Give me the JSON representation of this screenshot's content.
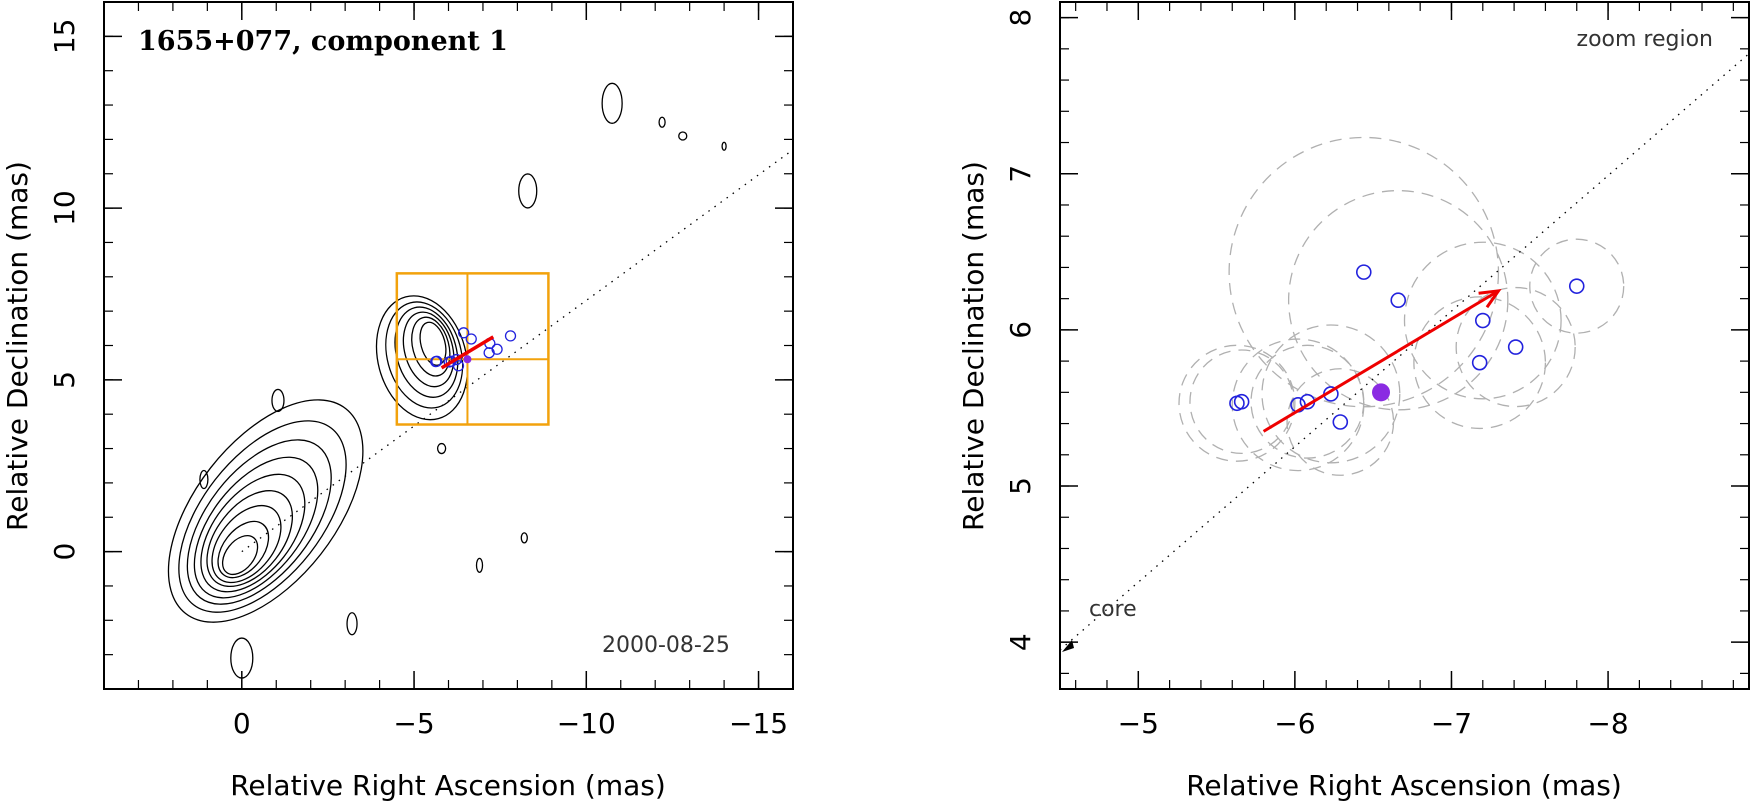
{
  "chart_data": [
    {
      "type": "scatter",
      "title": "1655+077, component 1",
      "xlabel": "Relative Right Ascension (mas)",
      "ylabel": "Relative Declination (mas)",
      "date": "2000-08-25",
      "xlim": [
        4,
        -16
      ],
      "ylim": [
        -4,
        16
      ],
      "x_ticks": [
        {
          "v": 0,
          "label": "0"
        },
        {
          "v": -5,
          "label": "−5"
        },
        {
          "v": -10,
          "label": "−10"
        },
        {
          "v": -15,
          "label": "−15"
        }
      ],
      "y_ticks": [
        {
          "v": 0,
          "label": "0"
        },
        {
          "v": 5,
          "label": "5"
        },
        {
          "v": 10,
          "label": "10"
        },
        {
          "v": 15,
          "label": "15"
        }
      ],
      "axis_line": {
        "slope": 0.73,
        "from": [
          0,
          0
        ],
        "to": [
          -16,
          11.7
        ]
      },
      "zoom_box": {
        "x": [
          -4.5,
          -8.9
        ],
        "y": [
          3.7,
          8.1
        ],
        "x_mid": -6.55,
        "y_mid": 5.6
      },
      "velocity_vector": {
        "from": [
          -5.8,
          5.35
        ],
        "to": [
          -7.3,
          6.25
        ]
      },
      "component_positions": [
        {
          "x": -5.63,
          "y": 5.53
        },
        {
          "x": -5.66,
          "y": 5.54
        },
        {
          "x": -6.02,
          "y": 5.52
        },
        {
          "x": -6.08,
          "y": 5.54
        },
        {
          "x": -6.23,
          "y": 5.59
        },
        {
          "x": -6.29,
          "y": 5.41
        },
        {
          "x": -6.44,
          "y": 6.37
        },
        {
          "x": -6.66,
          "y": 6.19
        },
        {
          "x": -7.18,
          "y": 5.79
        },
        {
          "x": -7.2,
          "y": 6.06
        },
        {
          "x": -7.41,
          "y": 5.89
        },
        {
          "x": -7.8,
          "y": 6.28
        }
      ],
      "mean_position": {
        "x": -6.55,
        "y": 5.6
      }
    },
    {
      "type": "scatter",
      "title": "zoom region",
      "xlabel": "Relative Right Ascension (mas)",
      "ylabel": "Relative Declination (mas)",
      "core_label": "core",
      "xlim": [
        -4.5,
        -8.9
      ],
      "ylim": [
        3.7,
        8.1
      ],
      "x_ticks": [
        {
          "v": -5,
          "label": "−5"
        },
        {
          "v": -6,
          "label": "−6"
        },
        {
          "v": -7,
          "label": "−7"
        },
        {
          "v": -8,
          "label": "−8"
        }
      ],
      "y_ticks": [
        {
          "v": 4,
          "label": "4"
        },
        {
          "v": 5,
          "label": "5"
        },
        {
          "v": 6,
          "label": "6"
        },
        {
          "v": 7,
          "label": "7"
        },
        {
          "v": 8,
          "label": "8"
        }
      ],
      "velocity_vector": {
        "from": [
          -5.8,
          5.35
        ],
        "to": [
          -7.3,
          6.25
        ]
      },
      "component_positions": [
        {
          "x": -5.63,
          "y": 5.53,
          "r": 0.37
        },
        {
          "x": -5.66,
          "y": 5.54,
          "r": 0.33
        },
        {
          "x": -6.02,
          "y": 5.52,
          "r": 0.42
        },
        {
          "x": -6.08,
          "y": 5.54,
          "r": 0.36
        },
        {
          "x": -6.23,
          "y": 5.59,
          "r": 0.44
        },
        {
          "x": -6.29,
          "y": 5.41,
          "r": 0.34
        },
        {
          "x": -6.44,
          "y": 6.37,
          "r": 0.86
        },
        {
          "x": -6.66,
          "y": 6.19,
          "r": 0.7
        },
        {
          "x": -7.18,
          "y": 5.79,
          "r": 0.42
        },
        {
          "x": -7.2,
          "y": 6.06,
          "r": 0.5
        },
        {
          "x": -7.41,
          "y": 5.89,
          "r": 0.38
        },
        {
          "x": -7.8,
          "y": 6.28,
          "r": 0.3
        }
      ],
      "mean_position": {
        "x": -6.55,
        "y": 5.6
      }
    }
  ]
}
